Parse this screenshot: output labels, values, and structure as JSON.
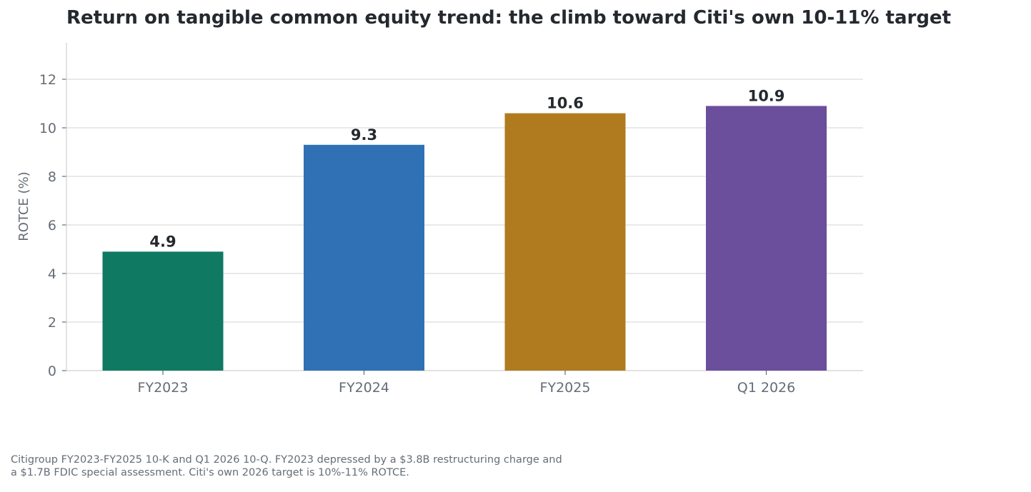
{
  "chart_data": {
    "type": "bar",
    "title": "Return on tangible common equity trend: the climb toward Citi's own 10-11% target",
    "xlabel": "",
    "ylabel": "ROTCE (%)",
    "categories": [
      "FY2023",
      "FY2024",
      "FY2025",
      "Q1 2026"
    ],
    "values": [
      4.9,
      9.3,
      10.6,
      10.9
    ],
    "value_labels": [
      "4.9",
      "9.3",
      "10.6",
      "10.9"
    ],
    "colors": [
      "#0f7a61",
      "#2f71b4",
      "#b07b1f",
      "#6b4e9c"
    ],
    "ylim": [
      0,
      13.5
    ],
    "yticks": [
      0,
      2,
      4,
      6,
      8,
      10,
      12
    ],
    "grid": "horizontal",
    "legend": "none"
  },
  "caption": {
    "line1": "Citigroup FY2023-FY2025 10-K and Q1 2026 10-Q. FY2023 depressed by a $3.8B restructuring charge and",
    "line2": "a $1.7B FDIC special assessment. Citi's own 2026 target is 10%-11% ROTCE."
  }
}
